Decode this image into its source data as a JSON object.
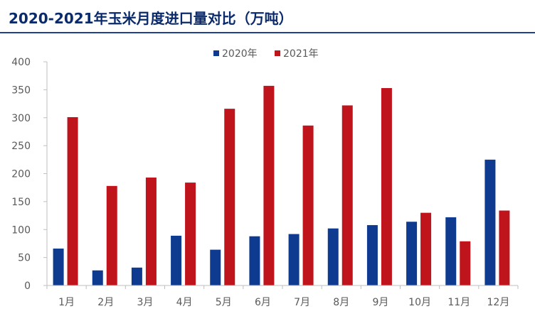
{
  "title": "2020-2021年玉米月度进口量对比（万吨）",
  "colors": {
    "s2020": "#0e3b8f",
    "s2021": "#c0141c",
    "axis": "#bfbfbf",
    "text": "#595959"
  },
  "chart_data": {
    "type": "bar",
    "title": "2020-2021年玉米月度进口量对比（万吨）",
    "categories": [
      "1月",
      "2月",
      "3月",
      "4月",
      "5月",
      "6月",
      "7月",
      "8月",
      "9月",
      "10月",
      "11月",
      "12月"
    ],
    "series": [
      {
        "name": "2020年",
        "values": [
          66,
          27,
          32,
          89,
          64,
          88,
          92,
          102,
          108,
          114,
          122,
          225
        ]
      },
      {
        "name": "2021年",
        "values": [
          301,
          178,
          193,
          184,
          316,
          357,
          286,
          322,
          353,
          130,
          79,
          134
        ]
      }
    ],
    "ylim": [
      0,
      400
    ],
    "yticks": [
      0,
      50,
      100,
      150,
      200,
      250,
      300,
      350,
      400
    ],
    "grid": false,
    "legend": "top-center",
    "xlabel": "",
    "ylabel": ""
  }
}
